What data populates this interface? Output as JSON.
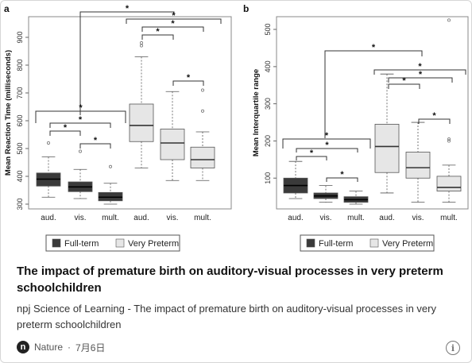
{
  "caption": {
    "title": "The impact of premature birth on auditory-visual processes in very preterm schoolchildren",
    "description": "npj Science of Learning - The impact of premature birth on auditory-visual processes in very preterm schoolchildren",
    "source": "Nature",
    "separator": "·",
    "date": "7月6日",
    "logo_letter": "n",
    "info_icon": "info-icon"
  },
  "legend": {
    "items": [
      {
        "label": "Full-term",
        "color": "#3a3a3a"
      },
      {
        "label": "Very Preterm",
        "color": "#e6e6e6"
      }
    ]
  },
  "colors": {
    "full_term": "#3a3a3a",
    "very_preterm": "#e6e6e6",
    "outline": "#555555"
  },
  "chart_data": [
    {
      "panel_label": "a",
      "type": "box",
      "ylabel": "Mean Reaction Time (milliseconds)",
      "ylim": [
        300,
        900
      ],
      "yticks": [
        300,
        400,
        500,
        600,
        700,
        800,
        900
      ],
      "categories": [
        "aud.",
        "vis.",
        "mult.",
        "aud.",
        "vis.",
        "mult."
      ],
      "series": [
        {
          "name": "Full-term",
          "boxes": [
            {
              "category": "aud.",
              "whisker_low": 325,
              "q1": 365,
              "median": 390,
              "q3": 412,
              "whisker_high": 470,
              "outliers": [
                520
              ]
            },
            {
              "category": "vis.",
              "whisker_low": 320,
              "q1": 345,
              "median": 362,
              "q3": 380,
              "whisker_high": 425,
              "outliers": [
                490
              ]
            },
            {
              "category": "mult.",
              "whisker_low": 300,
              "q1": 312,
              "median": 325,
              "q3": 342,
              "whisker_high": 375,
              "outliers": [
                435
              ]
            }
          ]
        },
        {
          "name": "Very Preterm",
          "boxes": [
            {
              "category": "aud.",
              "whisker_low": 430,
              "q1": 525,
              "median": 583,
              "q3": 660,
              "whisker_high": 830,
              "outliers": [
                870,
                880
              ]
            },
            {
              "category": "vis.",
              "whisker_low": 385,
              "q1": 460,
              "median": 520,
              "q3": 570,
              "whisker_high": 705,
              "outliers": []
            },
            {
              "category": "mult.",
              "whisker_low": 385,
              "q1": 430,
              "median": 460,
              "q3": 505,
              "whisker_high": 560,
              "outliers": [
                635,
                710
              ]
            }
          ]
        }
      ],
      "significance_marker": "*"
    },
    {
      "panel_label": "b",
      "type": "box",
      "ylabel": "Mean Interquartile range",
      "ylim": [
        30,
        530
      ],
      "yticks": [
        100,
        200,
        300,
        400,
        500
      ],
      "categories": [
        "aud.",
        "vis.",
        "mult.",
        "aud.",
        "vis.",
        "mult."
      ],
      "series": [
        {
          "name": "Full-term",
          "boxes": [
            {
              "category": "aud.",
              "whisker_low": 45,
              "q1": 60,
              "median": 80,
              "q3": 100,
              "whisker_high": 145,
              "outliers": []
            },
            {
              "category": "vis.",
              "whisker_low": 35,
              "q1": 45,
              "median": 52,
              "q3": 60,
              "whisker_high": 80,
              "outliers": []
            },
            {
              "category": "mult.",
              "whisker_low": 30,
              "q1": 35,
              "median": 42,
              "q3": 50,
              "whisker_high": 65,
              "outliers": []
            }
          ]
        },
        {
          "name": "Very Preterm",
          "boxes": [
            {
              "category": "aud.",
              "whisker_low": 60,
              "q1": 115,
              "median": 185,
              "q3": 245,
              "whisker_high": 380,
              "outliers": []
            },
            {
              "category": "vis.",
              "whisker_low": 35,
              "q1": 100,
              "median": 128,
              "q3": 170,
              "whisker_high": 250,
              "outliers": []
            },
            {
              "category": "mult.",
              "whisker_low": 35,
              "q1": 65,
              "median": 75,
              "q3": 105,
              "whisker_high": 135,
              "outliers": [
                200,
                205,
                525
              ]
            }
          ]
        }
      ],
      "significance_marker": "*"
    }
  ]
}
